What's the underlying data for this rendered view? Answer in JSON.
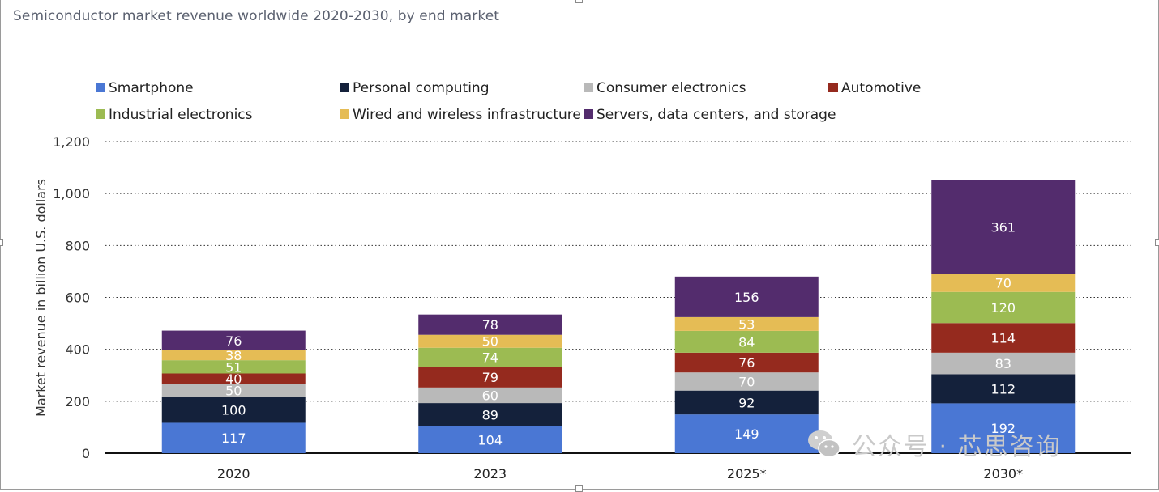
{
  "chart_data": {
    "type": "bar",
    "stacked": true,
    "title": "Semiconductor market revenue worldwide 2020-2030, by end market",
    "xlabel": "",
    "ylabel": "Market revenue in billion U.S. dollars",
    "ylim": [
      0,
      1200
    ],
    "yticks": [
      "0",
      "200",
      "400",
      "600",
      "800",
      "1,000",
      "1,200"
    ],
    "ytick_values": [
      0,
      200,
      400,
      600,
      800,
      1000,
      1200
    ],
    "categories": [
      "2020",
      "2023",
      "2025*",
      "2030*"
    ],
    "grid": "horizontal dotted",
    "legend_position": "top",
    "series": [
      {
        "name": "Smartphone",
        "color": "#4a77d4",
        "values": [
          117,
          104,
          149,
          192
        ]
      },
      {
        "name": "Personal computing",
        "color": "#14213b",
        "values": [
          100,
          89,
          92,
          112
        ]
      },
      {
        "name": "Consumer electronics",
        "color": "#b9b9b9",
        "values": [
          50,
          60,
          70,
          83
        ]
      },
      {
        "name": "Automotive",
        "color": "#952a1e",
        "values": [
          40,
          79,
          76,
          114
        ]
      },
      {
        "name": "Industrial electronics",
        "color": "#9cbb52",
        "values": [
          51,
          74,
          84,
          120
        ]
      },
      {
        "name": "Wired and wireless infrastructure",
        "color": "#e5bc55",
        "values": [
          38,
          50,
          53,
          70
        ]
      },
      {
        "name": "Servers, data centers, and storage",
        "color": "#532c6d",
        "values": [
          76,
          78,
          156,
          361
        ]
      }
    ]
  },
  "watermark": {
    "text": "公众号 · 芯思咨询",
    "icon": "wechat-icon"
  }
}
